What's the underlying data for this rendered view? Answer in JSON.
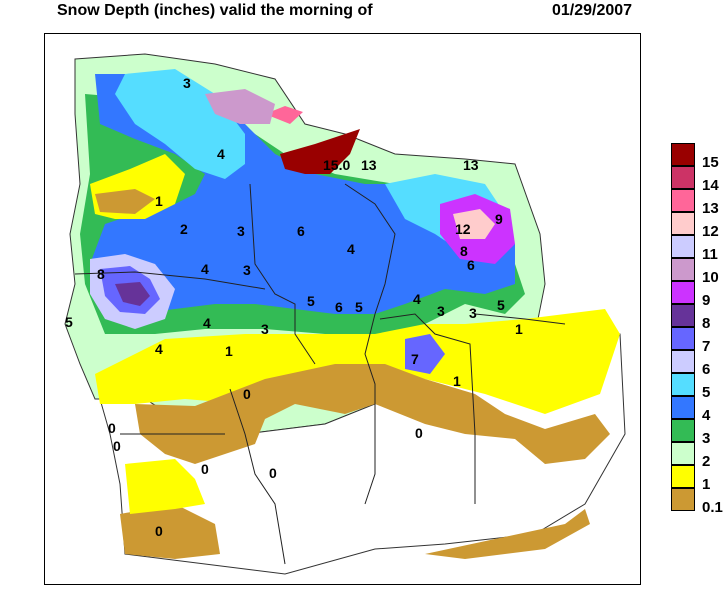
{
  "title": "Snow Depth (inches) valid the morning of",
  "date": "01/29/2007",
  "legend": [
    {
      "label": "15",
      "color": "#990000"
    },
    {
      "label": "14",
      "color": "#cc3366"
    },
    {
      "label": "13",
      "color": "#ff6699"
    },
    {
      "label": "12",
      "color": "#ffcccc"
    },
    {
      "label": "11",
      "color": "#ccccff"
    },
    {
      "label": "10",
      "color": "#cc99cc"
    },
    {
      "label": "9",
      "color": "#cc33ff"
    },
    {
      "label": "8",
      "color": "#663399"
    },
    {
      "label": "7",
      "color": "#6666ff"
    },
    {
      "label": "6",
      "color": "#ccccff"
    },
    {
      "label": "5",
      "color": "#55ddff"
    },
    {
      "label": "4",
      "color": "#3377ff"
    },
    {
      "label": "3",
      "color": "#33bb55"
    },
    {
      "label": "2",
      "color": "#ccffcc"
    },
    {
      "label": "1",
      "color": "#ffff00"
    },
    {
      "label": "0.1",
      "color": "#cc9933"
    }
  ],
  "map_labels": [
    "3",
    "4",
    "1",
    "2",
    "3",
    "6",
    "4",
    "8",
    "4",
    "3",
    "5",
    "4",
    "3",
    "5",
    "6",
    "5",
    "4",
    "3",
    "3",
    "5",
    "1",
    "1",
    "4",
    "7",
    "1",
    "0",
    "0",
    "0",
    "0",
    "0",
    "0",
    "0",
    "12",
    "9",
    "8",
    "6",
    "15.0",
    "13",
    "13"
  ]
}
